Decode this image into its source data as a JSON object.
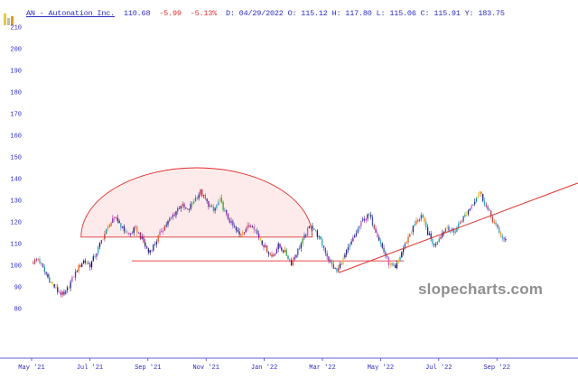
{
  "header": {
    "symbol_name": "AN - Autonation Inc.",
    "last_price": "110.68",
    "change": "-5.99",
    "change_pct": "-5.13%",
    "detail": "D: 04/29/2022 O: 115.12 H: 117.80 L: 115.06 C: 115.91 Y: 183.75"
  },
  "watermark": "slopecharts.com",
  "colors": {
    "axis_blue": "#2b2bc4",
    "annotation_red": "#e03030",
    "dome_fill": "rgba(240,60,60,0.10)",
    "watermark_gray": "#8f8f8f"
  },
  "chart_data": {
    "type": "candlestick",
    "symbol": "AN",
    "title": "AN - Autonation Inc.",
    "x_unit": "months since May 2021",
    "x_tick_labels": [
      "May '21",
      "Jul '21",
      "Sep '21",
      "Nov '21",
      "Jan '22",
      "Mar '22",
      "May '22",
      "Jul '22",
      "Sep '22"
    ],
    "x_tick_months": [
      0,
      2,
      4,
      6,
      8,
      10,
      12,
      14,
      16
    ],
    "y_ticks": [
      210,
      200,
      190,
      180,
      170,
      160,
      150,
      140,
      130,
      120,
      110,
      100,
      90,
      80
    ],
    "y_range": [
      80,
      210
    ],
    "weeks_span_months": 16.3,
    "candles_per_week": 4,
    "weekly_closes": [
      101,
      103,
      97,
      92,
      88,
      86,
      92,
      98,
      102,
      100,
      106,
      113,
      119,
      122,
      117,
      114,
      117,
      112,
      106,
      110,
      116,
      120,
      124,
      128,
      125,
      130,
      134,
      129,
      125,
      130,
      123,
      118,
      114,
      117,
      119,
      113,
      108,
      104,
      109,
      106,
      101,
      107,
      113,
      119,
      114,
      108,
      101,
      97,
      103,
      109,
      115,
      121,
      123,
      116,
      108,
      101,
      98,
      106,
      113,
      119,
      123,
      115,
      109,
      114,
      118,
      115,
      120,
      124,
      129,
      134,
      127,
      121,
      115,
      110.68
    ],
    "wick_amplitude": 1.6,
    "body_noise": 2.4,
    "palette": [
      "#20208a",
      "#6a3bb5",
      "#c2185b",
      "#e65c1a",
      "#e8c227",
      "#3a9e3a",
      "#168f8f",
      "#d04fc0",
      "#f09020",
      "#3f51b5",
      "#20208a",
      "#7b1fa2",
      "#2aa0c8",
      "#101060",
      "#20208a",
      "#b84040"
    ],
    "annotations": {
      "dome": {
        "shape": "semi-ellipse",
        "start_month": 1.7,
        "end_month": 9.65,
        "base_price": 113,
        "peak_price": 145
      },
      "support_line": {
        "shape": "horizontal-line",
        "price": 102,
        "start_month": 3.45,
        "end_month": 12.8
      },
      "trendline": {
        "shape": "rising-line",
        "start_month": 10.55,
        "start_price": 96.5,
        "end_month": 18.79,
        "end_price": 138
      }
    }
  }
}
